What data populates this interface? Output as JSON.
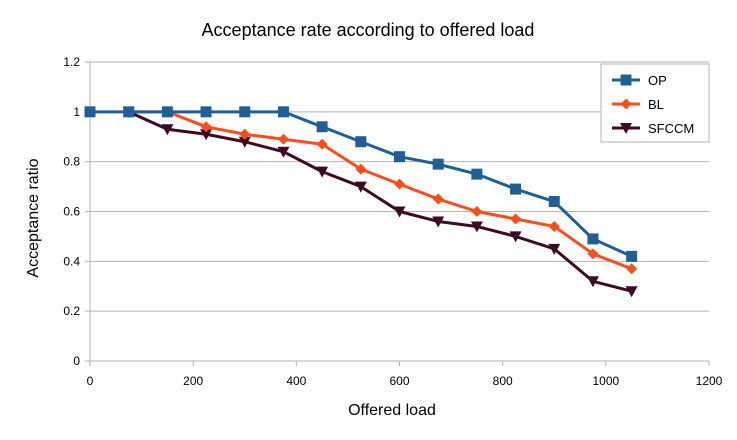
{
  "chart_data": {
    "type": "line",
    "title": "Acceptance rate according to offered load",
    "xlabel": "Offered load",
    "ylabel": "Acceptance ratio",
    "xlim": [
      0,
      1200
    ],
    "ylim": [
      0,
      1.2
    ],
    "xticks": [
      0,
      200,
      400,
      600,
      800,
      1000,
      1200
    ],
    "yticks": [
      0,
      0.2,
      0.4,
      0.6,
      0.8,
      1,
      1.2
    ],
    "grid": "horizontal",
    "legend_position": "top-right",
    "x": [
      0,
      75,
      150,
      225,
      300,
      375,
      450,
      525,
      600,
      675,
      750,
      825,
      900,
      975,
      1050
    ],
    "series": [
      {
        "name": "OP",
        "color": "#1f5f96",
        "marker": "square",
        "values": [
          1,
          1,
          1,
          1,
          1,
          1,
          0.94,
          0.88,
          0.82,
          0.79,
          0.75,
          0.69,
          0.64,
          0.49,
          0.42
        ]
      },
      {
        "name": "BL",
        "color": "#ff4d1c",
        "marker": "diamond",
        "values": [
          null,
          1,
          1,
          0.94,
          0.91,
          0.89,
          0.87,
          0.77,
          0.71,
          0.65,
          0.6,
          0.57,
          0.54,
          0.43,
          0.37
        ]
      },
      {
        "name": "SFCCM",
        "color": "#3d0a24",
        "marker": "triangle-down",
        "values": [
          null,
          1,
          0.93,
          0.91,
          0.88,
          0.84,
          0.76,
          0.7,
          0.6,
          0.56,
          0.54,
          0.5,
          0.45,
          0.32,
          0.28
        ]
      }
    ]
  }
}
